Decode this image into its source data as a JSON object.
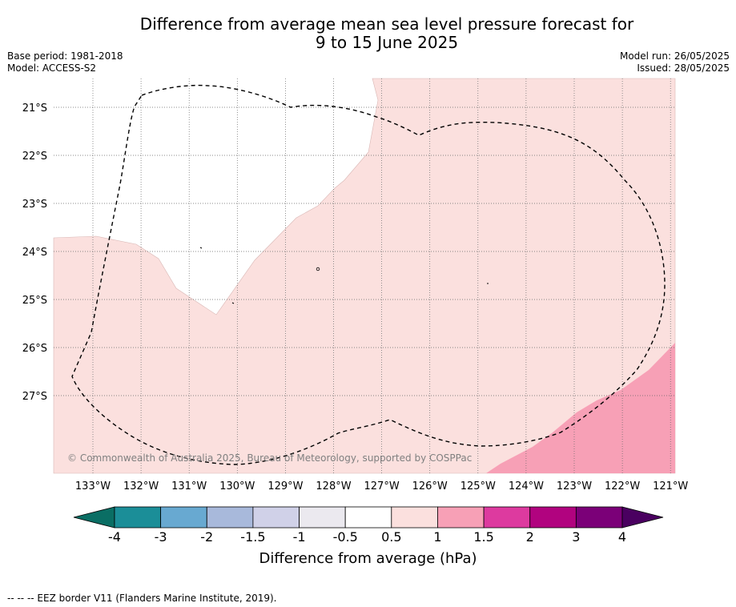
{
  "title": {
    "line1": "Difference from average mean sea level pressure forecast for",
    "line2": "9 to 15 June 2025"
  },
  "meta": {
    "base_period": "Base period: 1981-2018",
    "model": "Model: ACCESS-S2",
    "model_run": "Model run: 26/05/2025",
    "issued": "Issued: 28/05/2025"
  },
  "map": {
    "lon_labels": [
      "133°W",
      "132°W",
      "131°W",
      "130°W",
      "129°W",
      "128°W",
      "127°W",
      "126°W",
      "125°W",
      "124°W",
      "123°W",
      "122°W",
      "121°W"
    ],
    "lat_labels": [
      "21°S",
      "22°S",
      "23°S",
      "24°S",
      "25°S",
      "26°S",
      "27°S"
    ],
    "regions": [
      {
        "name": "anomaly-0.5-to-1",
        "color": "#fbe0de"
      },
      {
        "name": "anomaly-1-to-1.5",
        "color": "#f7a0b6"
      }
    ],
    "eez_line_style": "dashed",
    "copyright": "© Commonwealth of Australia 2025, Bureau of Meteorology, supported by COSPPac"
  },
  "colorbar": {
    "ticks": [
      "-4",
      "-3",
      "-2",
      "-1.5",
      "-1",
      "-0.5",
      "0.5",
      "1",
      "1.5",
      "2",
      "3",
      "4"
    ],
    "colors": [
      "#1b8e98",
      "#68a9d1",
      "#a8b9db",
      "#d0d1e8",
      "#ebe9ef",
      "#ffffff",
      "#fbe0de",
      "#f7a0b6",
      "#dd3a9f",
      "#b1037f",
      "#7b0078"
    ],
    "under_color": "#0a6e64",
    "over_color": "#4a0060",
    "label": "Difference from average (hPa)"
  },
  "footnote": "--  --  -- EEZ border V11 (Flanders Marine Institute, 2019)."
}
